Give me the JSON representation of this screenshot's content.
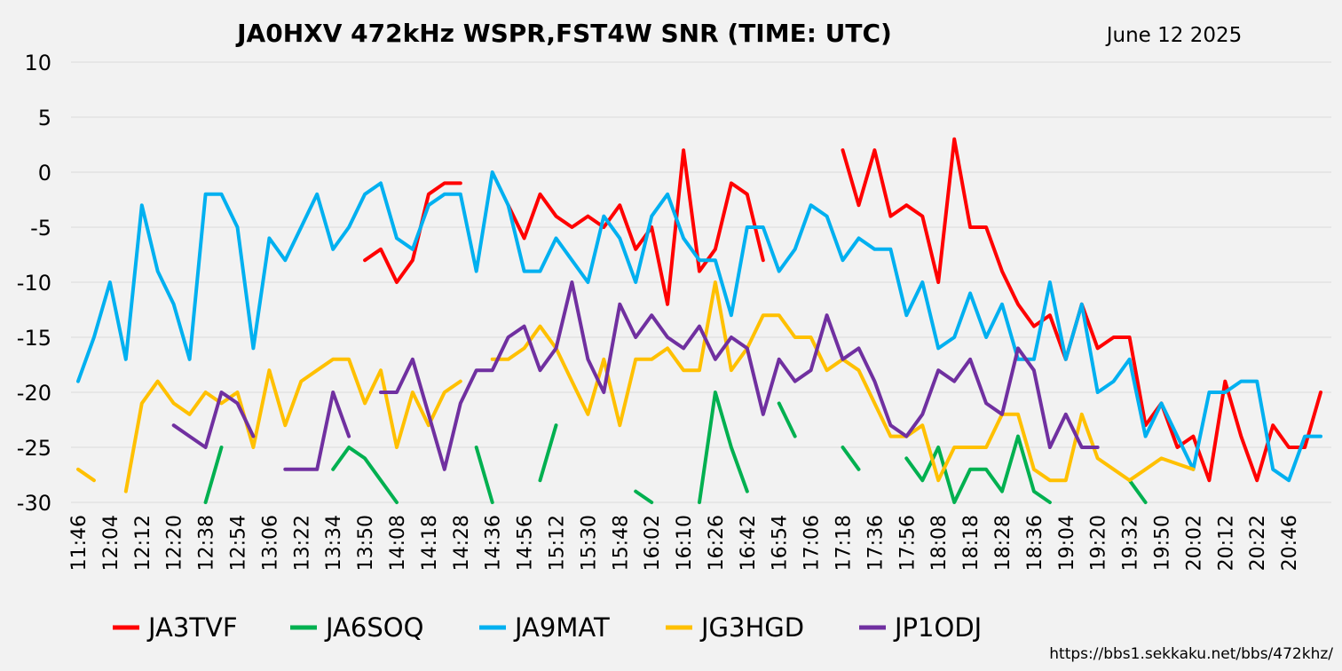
{
  "chart_data": {
    "type": "line",
    "title": "JA0HXV 472kHz WSPR,FST4W SNR (TIME: UTC)",
    "date": "June 12 2025",
    "url": "https://bbs1.sekkaku.net/bbs/472khz/",
    "ylim": [
      -30,
      10
    ],
    "yticks": [
      10,
      5,
      0,
      -5,
      -10,
      -15,
      -20,
      -25,
      -30
    ],
    "grid": true,
    "legend_position": "bottom",
    "x_labels": [
      "11:46",
      "12:04",
      "12:12",
      "12:20",
      "12:38",
      "12:54",
      "13:06",
      "13:22",
      "13:34",
      "13:50",
      "14:08",
      "14:18",
      "14:28",
      "14:36",
      "14:56",
      "15:12",
      "15:30",
      "15:48",
      "16:02",
      "16:10",
      "16:26",
      "16:42",
      "16:54",
      "17:06",
      "17:18",
      "17:36",
      "17:56",
      "18:08",
      "18:18",
      "18:28",
      "18:36",
      "19:04",
      "19:20",
      "19:32",
      "19:50",
      "20:02",
      "20:12",
      "20:22",
      "20:46"
    ],
    "n_points": 79,
    "series": [
      {
        "name": "JA3TVF",
        "color": "#ff0000",
        "values": [
          null,
          null,
          null,
          null,
          null,
          null,
          null,
          null,
          null,
          null,
          null,
          null,
          null,
          null,
          null,
          null,
          null,
          null,
          -8,
          -7,
          -10,
          -8,
          -2,
          -1,
          -1,
          null,
          null,
          -3,
          -6,
          -2,
          -4,
          -5,
          -4,
          -5,
          -3,
          -7,
          -5,
          -12,
          2,
          -9,
          -7,
          -1,
          -2,
          -8,
          null,
          null,
          null,
          null,
          2,
          -3,
          2,
          -4,
          -3,
          -4,
          -10,
          3,
          -5,
          -5,
          -9,
          -12,
          -14,
          -13,
          -17,
          -12,
          -16,
          -15,
          -15,
          -23,
          -21,
          -25,
          -24,
          -28,
          -19,
          -24,
          -28,
          -23,
          -25,
          -25,
          -20
        ]
      },
      {
        "name": "JA6SOQ",
        "color": "#00b050",
        "values": [
          null,
          null,
          null,
          null,
          null,
          null,
          null,
          null,
          -30,
          -25,
          null,
          null,
          null,
          null,
          null,
          null,
          -27,
          -25,
          -26,
          -28,
          -30,
          null,
          null,
          null,
          null,
          -25,
          -30,
          null,
          null,
          -28,
          -23,
          null,
          null,
          null,
          null,
          -29,
          -30,
          null,
          null,
          -30,
          -20,
          -25,
          -29,
          null,
          -21,
          -24,
          null,
          null,
          -25,
          -27,
          null,
          null,
          -26,
          -28,
          -25,
          -30,
          -27,
          -27,
          -29,
          -24,
          -29,
          -30,
          null,
          null,
          null,
          null,
          -28,
          -30,
          null,
          null,
          null,
          null,
          null,
          null,
          null,
          null,
          null,
          null,
          null
        ]
      },
      {
        "name": "JA9MAT",
        "color": "#00b0f0",
        "values": [
          -19,
          -15,
          -10,
          -17,
          -3,
          -9,
          -12,
          -17,
          -2,
          -2,
          -5,
          -16,
          -6,
          -8,
          -5,
          -2,
          -7,
          -5,
          -2,
          -1,
          -6,
          -7,
          -3,
          -2,
          -2,
          -9,
          0,
          -3,
          -9,
          -9,
          -6,
          -8,
          -10,
          -4,
          -6,
          -10,
          -4,
          -2,
          -6,
          -8,
          -8,
          -13,
          -5,
          -5,
          -9,
          -7,
          -3,
          -4,
          -8,
          -6,
          -7,
          -7,
          -13,
          -10,
          -16,
          -15,
          -11,
          -15,
          -12,
          -17,
          -17,
          -10,
          -17,
          -12,
          -20,
          -19,
          -17,
          -24,
          -21,
          -24,
          -27,
          -20,
          -20,
          -19,
          -19,
          -27,
          -28,
          -24,
          -24
        ]
      },
      {
        "name": "JG3HGD",
        "color": "#ffc000",
        "values": [
          -27,
          -28,
          null,
          -29,
          -21,
          -19,
          -21,
          -22,
          -20,
          -21,
          -20,
          -25,
          -18,
          -23,
          -19,
          -18,
          -17,
          -17,
          -21,
          -18,
          -25,
          -20,
          -23,
          -20,
          -19,
          null,
          -17,
          -17,
          -16,
          -14,
          -16,
          -19,
          -22,
          -17,
          -23,
          -17,
          -17,
          -16,
          -18,
          -18,
          -10,
          -18,
          -16,
          -13,
          -13,
          -15,
          -15,
          -18,
          -17,
          -18,
          -21,
          -24,
          -24,
          -23,
          -28,
          -25,
          -25,
          -25,
          -22,
          -22,
          -27,
          -28,
          -28,
          -22,
          -26,
          -27,
          -28,
          -27,
          -26,
          -26.5,
          -27,
          null,
          null,
          null,
          null,
          null,
          null,
          null,
          null
        ]
      },
      {
        "name": "JP1ODJ",
        "color": "#7030a0",
        "values": [
          null,
          null,
          null,
          null,
          null,
          null,
          -23,
          -24,
          -25,
          -20,
          -21,
          -24,
          null,
          -27,
          -27,
          -27,
          -20,
          -24,
          null,
          -20,
          -20,
          -17,
          -22,
          -27,
          -21,
          -18,
          -18,
          -15,
          -14,
          -18,
          -16,
          -10,
          -17,
          -20,
          -12,
          -15,
          -13,
          -15,
          -16,
          -14,
          -17,
          -15,
          -16,
          -22,
          -17,
          -19,
          -18,
          -13,
          -17,
          -16,
          -19,
          -23,
          -24,
          -22,
          -18,
          -19,
          -17,
          -21,
          -22,
          -16,
          -18,
          -25,
          -22,
          -25,
          -25,
          null,
          null,
          null,
          null,
          null,
          null,
          null,
          null,
          null,
          null,
          null,
          null,
          null,
          null
        ]
      }
    ]
  }
}
